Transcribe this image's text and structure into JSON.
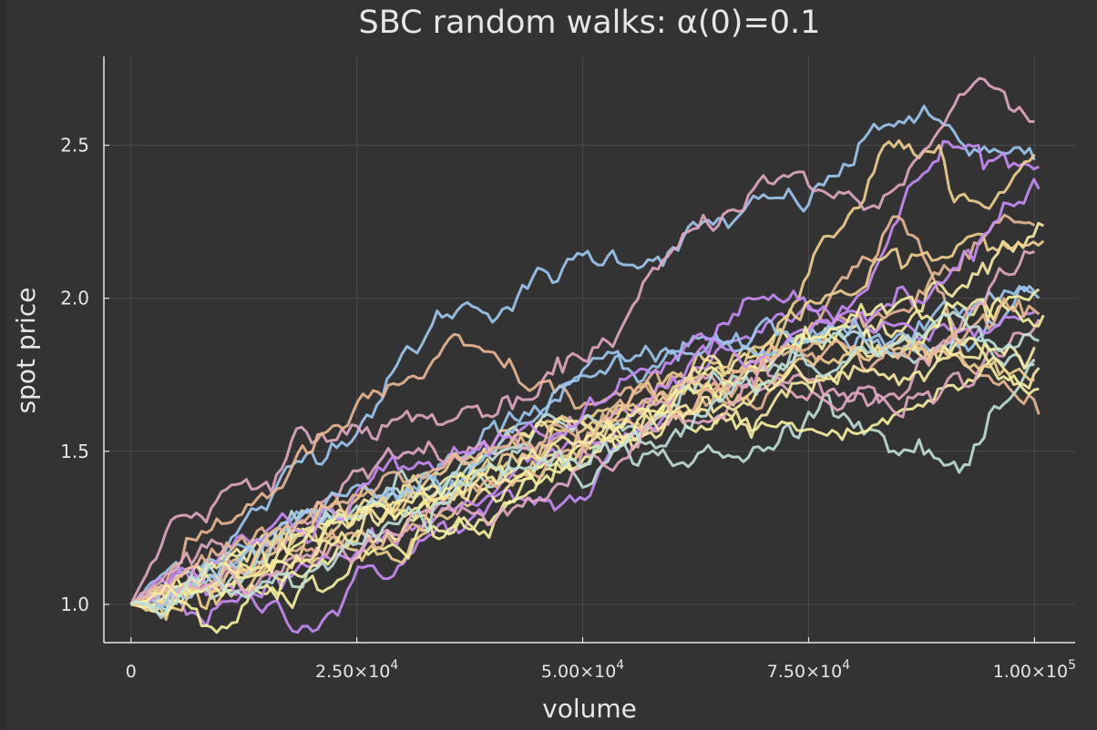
{
  "chart_data": {
    "type": "line",
    "title": "SBC random walks: α(0)=0.1",
    "xlabel": "volume",
    "ylabel": "spot price",
    "xlim": [
      -3000,
      104500
    ],
    "ylim": [
      0.875,
      2.79
    ],
    "grid": true,
    "legend": "none",
    "x_ticks": [
      {
        "value": 0,
        "mantissa": "0",
        "exp": ""
      },
      {
        "value": 25000,
        "mantissa": "2.50×10",
        "exp": "4"
      },
      {
        "value": 50000,
        "mantissa": "5.00×10",
        "exp": "4"
      },
      {
        "value": 75000,
        "mantissa": "7.50×10",
        "exp": "4"
      },
      {
        "value": 100000,
        "mantissa": "1.00×10",
        "exp": "5"
      }
    ],
    "y_ticks": [
      {
        "value": 1.0,
        "label": "1.0"
      },
      {
        "value": 1.5,
        "label": "1.5"
      },
      {
        "value": 2.0,
        "label": "2.0"
      },
      {
        "value": 2.5,
        "label": "2.5"
      }
    ],
    "colors": [
      "#9dc8f0",
      "#c78cf5",
      "#f0d08f",
      "#f5f1a0",
      "#e2a8c2",
      "#eab894",
      "#bfe0d8",
      "#f7eba3"
    ],
    "sampling": {
      "points": 180,
      "noise_scale": 0.02
    },
    "series": [
      {
        "color_index": 0,
        "x_end": 100000,
        "anchors": [
          [
            0,
            1.0
          ],
          [
            16000,
            1.35
          ],
          [
            35000,
            1.95
          ],
          [
            45000,
            2.05
          ],
          [
            60000,
            2.2
          ],
          [
            75000,
            2.3
          ],
          [
            85000,
            2.6
          ],
          [
            100000,
            2.4
          ]
        ]
      },
      {
        "color_index": 1,
        "x_end": 100500,
        "anchors": [
          [
            0,
            1.0
          ],
          [
            20000,
            0.97
          ],
          [
            35000,
            1.25
          ],
          [
            50000,
            1.35
          ],
          [
            65000,
            1.85
          ],
          [
            80000,
            2.05
          ],
          [
            90000,
            2.5
          ],
          [
            100500,
            2.43
          ]
        ]
      },
      {
        "color_index": 2,
        "x_end": 100000,
        "anchors": [
          [
            0,
            1.0
          ],
          [
            30000,
            1.2
          ],
          [
            50000,
            1.55
          ],
          [
            70000,
            1.9
          ],
          [
            85000,
            2.55
          ],
          [
            95000,
            2.25
          ],
          [
            100000,
            2.5
          ]
        ]
      },
      {
        "color_index": 4,
        "x_end": 100000,
        "anchors": [
          [
            0,
            1.0
          ],
          [
            5000,
            1.28
          ],
          [
            20000,
            1.55
          ],
          [
            45000,
            1.65
          ],
          [
            60000,
            2.1
          ],
          [
            69000,
            2.4
          ],
          [
            82000,
            2.3
          ],
          [
            95000,
            2.75
          ],
          [
            100000,
            2.6
          ]
        ]
      },
      {
        "color_index": 5,
        "x_end": 100500,
        "anchors": [
          [
            0,
            1.0
          ],
          [
            20000,
            1.5
          ],
          [
            35000,
            1.8
          ],
          [
            50000,
            1.65
          ],
          [
            70000,
            1.7
          ],
          [
            85000,
            2.2
          ],
          [
            100500,
            1.6
          ]
        ]
      },
      {
        "color_index": 6,
        "x_end": 100000,
        "anchors": [
          [
            0,
            1.0
          ],
          [
            20000,
            1.3
          ],
          [
            45000,
            1.5
          ],
          [
            60000,
            1.5
          ],
          [
            68000,
            1.45
          ],
          [
            78000,
            1.7
          ],
          [
            92000,
            1.42
          ],
          [
            100000,
            1.72
          ]
        ]
      },
      {
        "color_index": 3,
        "x_end": 100500,
        "anchors": [
          [
            0,
            1.0
          ],
          [
            25000,
            1.1
          ],
          [
            45000,
            1.35
          ],
          [
            60000,
            1.6
          ],
          [
            80000,
            1.55
          ],
          [
            95000,
            1.75
          ],
          [
            100500,
            1.7
          ]
        ]
      },
      {
        "color_index": 7,
        "x_end": 101000,
        "anchors": [
          [
            0,
            1.0
          ],
          [
            25000,
            1.35
          ],
          [
            50000,
            1.45
          ],
          [
            70000,
            1.85
          ],
          [
            85000,
            1.95
          ],
          [
            101000,
            2.3
          ]
        ]
      },
      {
        "color_index": 0,
        "x_end": 100500,
        "anchors": [
          [
            0,
            1.0
          ],
          [
            30000,
            1.35
          ],
          [
            55000,
            1.75
          ],
          [
            75000,
            1.9
          ],
          [
            90000,
            1.8
          ],
          [
            100500,
            2.05
          ]
        ]
      },
      {
        "color_index": 1,
        "x_end": 100000,
        "anchors": [
          [
            0,
            1.0
          ],
          [
            25000,
            1.15
          ],
          [
            50000,
            1.5
          ],
          [
            70000,
            2.0
          ],
          [
            85000,
            1.85
          ],
          [
            100000,
            1.95
          ]
        ]
      },
      {
        "color_index": 2,
        "x_end": 101000,
        "anchors": [
          [
            0,
            1.0
          ],
          [
            20000,
            1.2
          ],
          [
            45000,
            1.6
          ],
          [
            65000,
            1.75
          ],
          [
            85000,
            2.1
          ],
          [
            101000,
            2.2
          ]
        ]
      },
      {
        "color_index": 3,
        "x_end": 100500,
        "anchors": [
          [
            0,
            1.0
          ],
          [
            15000,
            1.05
          ],
          [
            40000,
            1.3
          ],
          [
            65000,
            1.8
          ],
          [
            85000,
            1.9
          ],
          [
            100500,
            2.05
          ]
        ]
      },
      {
        "color_index": 4,
        "x_end": 100500,
        "anchors": [
          [
            0,
            1.0
          ],
          [
            25000,
            1.4
          ],
          [
            50000,
            1.6
          ],
          [
            70000,
            1.75
          ],
          [
            85000,
            1.6
          ],
          [
            100500,
            1.9
          ]
        ]
      },
      {
        "color_index": 5,
        "x_end": 100000,
        "anchors": [
          [
            0,
            1.0
          ],
          [
            30000,
            1.25
          ],
          [
            55000,
            1.55
          ],
          [
            80000,
            1.95
          ],
          [
            100000,
            2.2
          ]
        ]
      },
      {
        "color_index": 6,
        "x_end": 100000,
        "anchors": [
          [
            0,
            1.0
          ],
          [
            20000,
            1.25
          ],
          [
            50000,
            1.55
          ],
          [
            75000,
            1.8
          ],
          [
            100000,
            1.85
          ]
        ]
      },
      {
        "color_index": 7,
        "x_end": 100500,
        "anchors": [
          [
            0,
            1.0
          ],
          [
            25000,
            1.25
          ],
          [
            45000,
            1.55
          ],
          [
            65000,
            1.65
          ],
          [
            85000,
            1.85
          ],
          [
            100500,
            1.75
          ]
        ]
      },
      {
        "color_index": 0,
        "x_end": 100000,
        "anchors": [
          [
            0,
            1.0
          ],
          [
            20000,
            1.3
          ],
          [
            40000,
            1.5
          ],
          [
            60000,
            1.8
          ],
          [
            80000,
            1.85
          ],
          [
            100000,
            1.95
          ]
        ]
      },
      {
        "color_index": 1,
        "x_end": 100500,
        "anchors": [
          [
            0,
            1.0
          ],
          [
            30000,
            1.4
          ],
          [
            55000,
            1.7
          ],
          [
            75000,
            1.9
          ],
          [
            90000,
            2.1
          ],
          [
            100500,
            2.35
          ]
        ]
      },
      {
        "color_index": 2,
        "x_end": 100000,
        "anchors": [
          [
            0,
            1.0
          ],
          [
            25000,
            1.3
          ],
          [
            50000,
            1.55
          ],
          [
            75000,
            1.85
          ],
          [
            100000,
            1.75
          ]
        ]
      },
      {
        "color_index": 3,
        "x_end": 101000,
        "anchors": [
          [
            0,
            1.0
          ],
          [
            15000,
            1.15
          ],
          [
            40000,
            1.45
          ],
          [
            60000,
            1.65
          ],
          [
            80000,
            1.95
          ],
          [
            101000,
            2.0
          ]
        ]
      },
      {
        "color_index": 4,
        "x_end": 100000,
        "anchors": [
          [
            0,
            1.0
          ],
          [
            25000,
            1.2
          ],
          [
            50000,
            1.45
          ],
          [
            70000,
            1.7
          ],
          [
            85000,
            1.75
          ],
          [
            100000,
            2.15
          ]
        ]
      },
      {
        "color_index": 5,
        "x_end": 100500,
        "anchors": [
          [
            0,
            1.0
          ],
          [
            25000,
            1.35
          ],
          [
            50000,
            1.6
          ],
          [
            75000,
            1.8
          ],
          [
            100500,
            1.95
          ]
        ]
      },
      {
        "color_index": 7,
        "x_end": 100000,
        "anchors": [
          [
            0,
            1.0
          ],
          [
            30000,
            1.3
          ],
          [
            55000,
            1.6
          ],
          [
            80000,
            1.75
          ],
          [
            100000,
            1.8
          ]
        ]
      },
      {
        "color_index": 6,
        "x_end": 100500,
        "anchors": [
          [
            0,
            1.0
          ],
          [
            20000,
            1.1
          ],
          [
            45000,
            1.45
          ],
          [
            70000,
            1.7
          ],
          [
            90000,
            1.9
          ],
          [
            100500,
            1.85
          ]
        ]
      }
    ]
  }
}
